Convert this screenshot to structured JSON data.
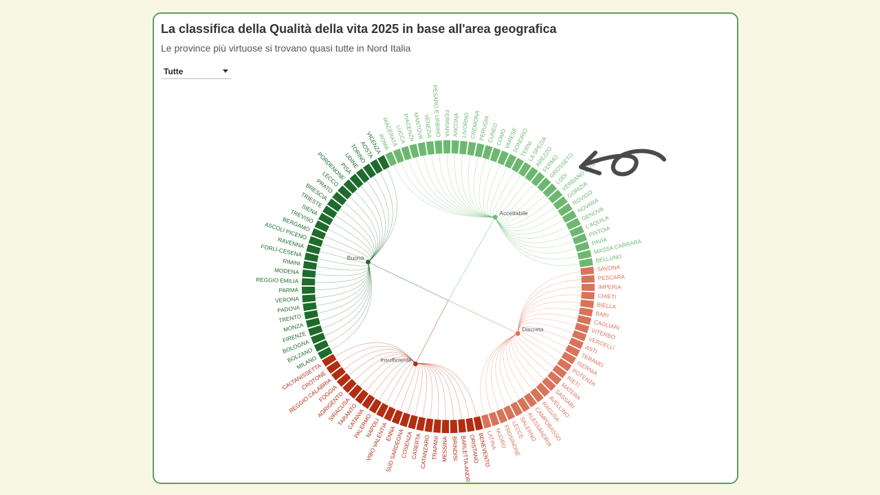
{
  "header": {
    "title": "La classifica della Qualità della vita 2025 in base all'area geografica",
    "subtitle": "Le province più virtuose si trovano quasi tutte in Nord Italia"
  },
  "filter": {
    "selected": "Tutte"
  },
  "decorations": {
    "arrow": "hand-drawn-arrow-icon"
  },
  "chart_data": {
    "type": "radial-dendrogram",
    "root": "center",
    "groups": [
      {
        "name": "Buona",
        "color": "#1e6b2c",
        "provinces": [
          "MILANO",
          "BOLZANO",
          "BOLOGNA",
          "FIRENZE",
          "MONZA",
          "TRENTO",
          "PADOVA",
          "VERONA",
          "PARMA",
          "REGGIO EMILIA",
          "MODENA",
          "RIMINI",
          "FORLÌ-CESENA",
          "RAVENNA",
          "ASCOLI PICENO",
          "BERGAMO",
          "TREVISO",
          "SIENA",
          "TRIESTE",
          "BRESCIA",
          "PRATO",
          "LECCO",
          "PORDENONE",
          "PISA",
          "UDINE",
          "TORINO",
          "AOSTA",
          "VICENZA"
        ]
      },
      {
        "name": "Accettabile",
        "color": "#6db870",
        "provinces": [
          "ROMA",
          "MACERATA",
          "LUCCA",
          "PIACENZA",
          "MANTOVA",
          "VENEZIA",
          "PESARO E URBINO",
          "FERRARA",
          "ANCONA",
          "LIVORNO",
          "CREMONA",
          "PERUGIA",
          "CUNEO",
          "COMO",
          "VARESE",
          "SONDRIO",
          "TERNI",
          "LA SPEZIA",
          "AREZZO",
          "FERMO",
          "GROSSETO",
          "LODI",
          "VERBANO CUSIO...",
          "GORIZIA",
          "ROVIGO",
          "NOVARA",
          "GENOVA",
          "L'AQUILA",
          "PISTOIA",
          "PAVIA",
          "MASSA CARRARA",
          "BELLUNO"
        ]
      },
      {
        "name": "Discreta",
        "color": "#d9735a",
        "provinces": [
          "SAVONA",
          "PESCARA",
          "IMPERIA",
          "CHIETI",
          "BIELLA",
          "BARI",
          "CAGLIARI",
          "VITERBO",
          "VERCELLI",
          "ASTI",
          "TERAMO",
          "ISERNIA",
          "POTENZA",
          "RIETI",
          "MATERA",
          "SASSARI",
          "AVELLINO",
          "RAGUSA",
          "CAMPOBASSO",
          "ALESSANDRIA",
          "SALERNO",
          "LECCE",
          "FROSINONE",
          "NUORO",
          "LATINA"
        ]
      },
      {
        "name": "Insufficiente",
        "color": "#b32d12",
        "provinces": [
          "BENEVENTO",
          "ORISTANO",
          "BARLETTA-ANDRIA...",
          "BRINDISI",
          "MESSINA",
          "TRAPANI",
          "CATANZARO",
          "CASERTA",
          "COSENZA",
          "SUD SARDEGNA",
          "ENNA",
          "VIBO VALENTIA",
          "NAPOLI",
          "PALERMO",
          "CATANIA",
          "TARANTO",
          "SIRACUSA",
          "AGRIGENTO",
          "FOGGIA",
          "REGGIO CALABRIA",
          "CROTONE",
          "CALTANISSETTA"
        ]
      }
    ]
  }
}
